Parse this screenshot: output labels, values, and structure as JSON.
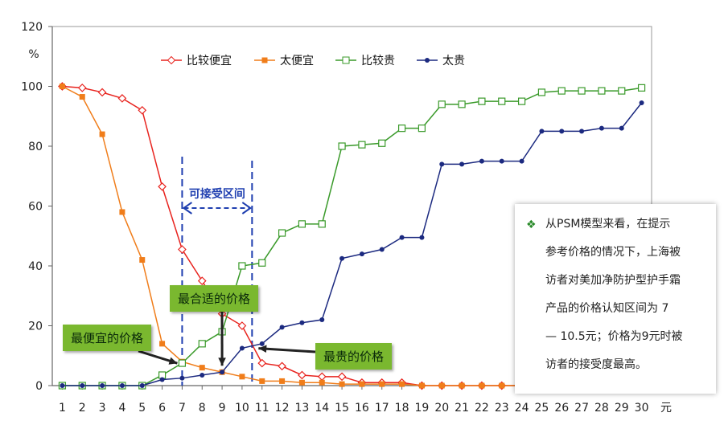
{
  "chart_data": {
    "type": "line",
    "ylabel": "%",
    "xlabel": "元",
    "ylim": [
      0,
      120
    ],
    "yticks": [
      0,
      20,
      40,
      60,
      80,
      100,
      120
    ],
    "x": [
      1,
      2,
      3,
      4,
      5,
      6,
      7,
      8,
      9,
      10,
      11,
      12,
      13,
      14,
      15,
      16,
      17,
      18,
      19,
      20,
      21,
      22,
      23,
      24,
      25,
      26,
      27,
      28,
      29,
      30
    ],
    "legend_position": "top",
    "series": [
      {
        "name": "比较便宜",
        "color": "#e8231e",
        "marker": "diamond-open",
        "values": [
          100,
          99.5,
          98,
          96,
          92,
          66.5,
          45.5,
          35,
          24,
          20,
          7.5,
          6.5,
          3.5,
          3,
          3,
          1,
          1,
          1,
          0,
          0,
          0,
          0,
          0,
          0,
          0,
          0,
          0,
          0,
          0,
          0
        ]
      },
      {
        "name": "太便宜",
        "color": "#f07d1a",
        "marker": "square-filled",
        "values": [
          100,
          96.5,
          84,
          58,
          42,
          14,
          8,
          6,
          4.5,
          3,
          1.5,
          1.5,
          1,
          1,
          0.5,
          0.5,
          0.5,
          0.5,
          0,
          0,
          0,
          0,
          0,
          0,
          0,
          0,
          0,
          0,
          0,
          0
        ]
      },
      {
        "name": "比较贵",
        "color": "#3a9a2a",
        "marker": "square-open",
        "values": [
          0,
          0,
          0,
          0,
          0,
          3.5,
          7.5,
          14,
          18,
          40,
          41,
          51,
          54,
          54,
          80,
          80.5,
          81,
          86,
          86,
          94,
          94,
          95,
          95,
          95,
          98,
          98.5,
          98.5,
          98.5,
          98.5,
          99.5
        ]
      },
      {
        "name": "太贵",
        "color": "#1c2a80",
        "marker": "circle-filled",
        "values": [
          0,
          0,
          0,
          0,
          0,
          2,
          2.5,
          3.5,
          4.5,
          12.5,
          14,
          19.5,
          21,
          22,
          42.5,
          44,
          45.5,
          49.5,
          49.5,
          74,
          74,
          75,
          75,
          75,
          85,
          85,
          85,
          86,
          86,
          94.5
        ]
      }
    ],
    "acceptable_range": {
      "label": "可接受区间",
      "from": 7,
      "to": 10.5
    },
    "annotations": [
      {
        "label": "最便宜的价格",
        "x": 7,
        "y": 8
      },
      {
        "label": "最合适的价格",
        "x": 9,
        "y": 4.5
      },
      {
        "label": "最贵的价格",
        "x": 10.5,
        "y": 13
      }
    ]
  },
  "note": {
    "bullet": "❖",
    "lines": [
      "从PSM模型来看，在提示",
      "参考价格的情况下，上海被",
      "访者对美加净防护型护手霜",
      "产品的价格认知区间为 7",
      "— 10.5元；价格为9元时被",
      "访者的接受度最高。"
    ]
  }
}
